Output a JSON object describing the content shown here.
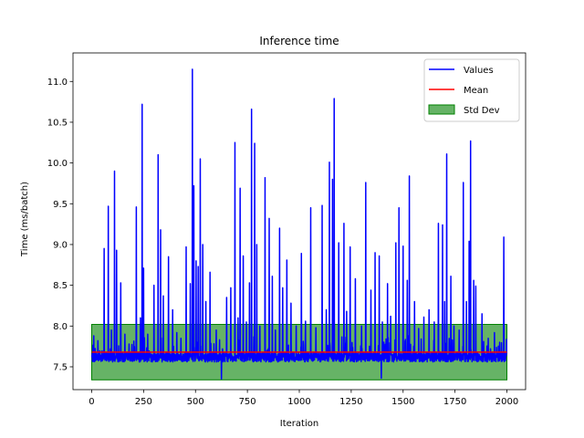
{
  "chart_data": {
    "type": "line",
    "title": "Inference time",
    "xlabel": "Iteration",
    "ylabel": "Time (ms/batch)",
    "xlim": [
      -90,
      2090
    ],
    "ylim": [
      7.22,
      11.35
    ],
    "x_ticks": [
      0,
      250,
      500,
      750,
      1000,
      1250,
      1500,
      1750,
      2000
    ],
    "x_tick_labels": [
      "0",
      "250",
      "500",
      "750",
      "1000",
      "1250",
      "1500",
      "1750",
      "2000"
    ],
    "y_ticks": [
      7.5,
      8.0,
      8.5,
      9.0,
      9.5,
      10.0,
      10.5,
      11.0
    ],
    "y_tick_labels": [
      "7.5",
      "8.0",
      "8.5",
      "9.0",
      "9.5",
      "10.0",
      "10.5",
      "11.0"
    ],
    "grid": false,
    "legend_position": "top-right",
    "legend": [
      "Values",
      "Mean",
      "Std Dev"
    ],
    "series": [
      {
        "name": "Values",
        "color": "#0000ff",
        "baseline": 7.62,
        "n_points": 2000,
        "spikes": [
          [
            10,
            7.88
          ],
          [
            30,
            7.82
          ],
          [
            60,
            8.95
          ],
          [
            80,
            9.47
          ],
          [
            95,
            7.95
          ],
          [
            110,
            9.9
          ],
          [
            120,
            8.93
          ],
          [
            140,
            8.53
          ],
          [
            160,
            7.9
          ],
          [
            180,
            7.78
          ],
          [
            215,
            9.46
          ],
          [
            235,
            8.1
          ],
          [
            243,
            10.72
          ],
          [
            250,
            8.71
          ],
          [
            270,
            7.9
          ],
          [
            300,
            8.5
          ],
          [
            320,
            10.1
          ],
          [
            332,
            9.18
          ],
          [
            345,
            8.37
          ],
          [
            370,
            8.85
          ],
          [
            390,
            8.2
          ],
          [
            410,
            7.92
          ],
          [
            430,
            7.85
          ],
          [
            455,
            8.97
          ],
          [
            475,
            8.52
          ],
          [
            485,
            11.15
          ],
          [
            492,
            9.72
          ],
          [
            503,
            8.8
          ],
          [
            513,
            8.73
          ],
          [
            523,
            10.05
          ],
          [
            535,
            9.0
          ],
          [
            550,
            8.3
          ],
          [
            570,
            8.66
          ],
          [
            600,
            7.95
          ],
          [
            625,
            8.2
          ],
          [
            650,
            8.35
          ],
          [
            670,
            8.47
          ],
          [
            690,
            10.25
          ],
          [
            705,
            8.1
          ],
          [
            715,
            9.69
          ],
          [
            730,
            8.86
          ],
          [
            745,
            8.05
          ],
          [
            760,
            8.53
          ],
          [
            770,
            10.66
          ],
          [
            785,
            10.24
          ],
          [
            795,
            9.0
          ],
          [
            810,
            8.0
          ],
          [
            835,
            9.82
          ],
          [
            855,
            9.32
          ],
          [
            870,
            8.61
          ],
          [
            885,
            7.95
          ],
          [
            905,
            9.2
          ],
          [
            920,
            8.47
          ],
          [
            940,
            8.81
          ],
          [
            960,
            8.28
          ],
          [
            985,
            8.0
          ],
          [
            1010,
            8.89
          ],
          [
            1030,
            8.06
          ],
          [
            1055,
            9.45
          ],
          [
            1080,
            7.98
          ],
          [
            1110,
            9.48
          ],
          [
            1130,
            8.2
          ],
          [
            1145,
            10.01
          ],
          [
            1160,
            9.8
          ],
          [
            1168,
            10.79
          ],
          [
            1190,
            9.02
          ],
          [
            1215,
            9.26
          ],
          [
            1228,
            8.18
          ],
          [
            1245,
            8.97
          ],
          [
            1270,
            8.58
          ],
          [
            1300,
            8.0
          ],
          [
            1320,
            9.76
          ],
          [
            1345,
            8.44
          ],
          [
            1365,
            8.9
          ],
          [
            1385,
            8.86
          ],
          [
            1400,
            8.05
          ],
          [
            1425,
            8.52
          ],
          [
            1440,
            8.12
          ],
          [
            1465,
            9.02
          ],
          [
            1480,
            9.45
          ],
          [
            1500,
            8.98
          ],
          [
            1520,
            8.56
          ],
          [
            1530,
            9.84
          ],
          [
            1555,
            8.3
          ],
          [
            1575,
            7.97
          ],
          [
            1600,
            8.11
          ],
          [
            1625,
            8.2
          ],
          [
            1650,
            8.05
          ],
          [
            1670,
            9.26
          ],
          [
            1690,
            9.24
          ],
          [
            1700,
            8.3
          ],
          [
            1710,
            10.11
          ],
          [
            1730,
            8.61
          ],
          [
            1745,
            8.0
          ],
          [
            1770,
            7.95
          ],
          [
            1790,
            9.76
          ],
          [
            1805,
            8.3
          ],
          [
            1818,
            9.04
          ],
          [
            1825,
            10.27
          ],
          [
            1840,
            8.56
          ],
          [
            1850,
            8.49
          ],
          [
            1880,
            8.15
          ],
          [
            1910,
            7.85
          ],
          [
            1940,
            7.92
          ],
          [
            1965,
            7.8
          ],
          [
            1985,
            9.09
          ]
        ],
        "dips": [
          [
            625,
            7.35
          ],
          [
            1395,
            7.36
          ]
        ]
      },
      {
        "name": "Mean",
        "color": "#ff0000",
        "value": 7.68
      },
      {
        "name": "Std Dev",
        "color": "#008000",
        "alpha": 0.6,
        "lower": 7.34,
        "upper": 8.02
      }
    ]
  }
}
